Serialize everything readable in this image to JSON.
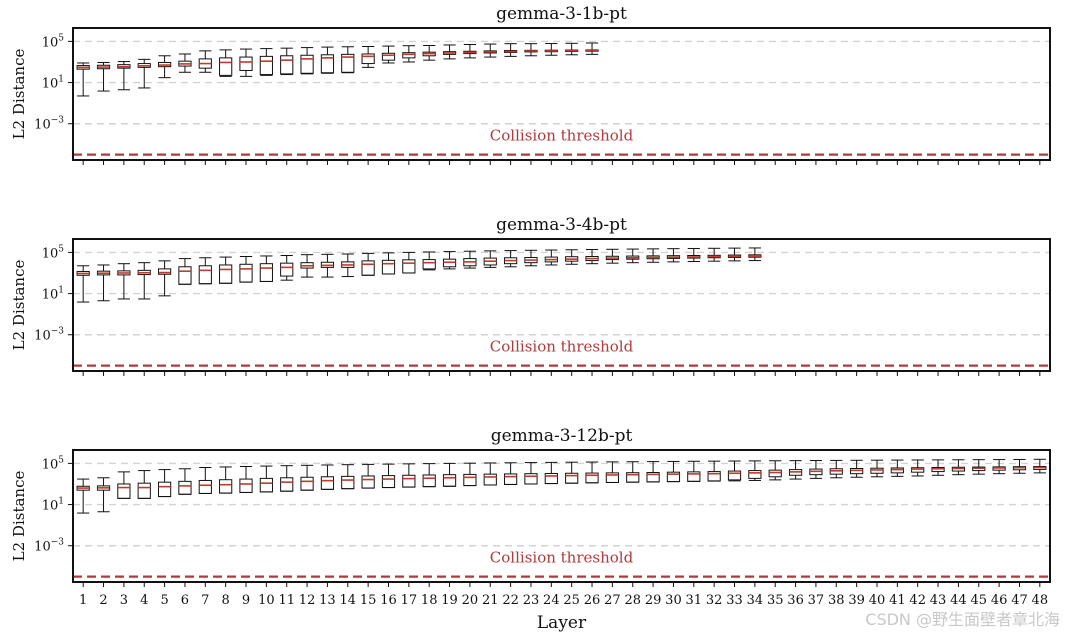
{
  "chart_data": [
    {
      "type": "boxplot",
      "title": "gemma-3-1b-pt",
      "ylabel": "L2 Distance",
      "xlabel": "Layer",
      "yscale": "log",
      "ylim": [
        3e-07,
        2000000.0
      ],
      "yticks": [
        0.001,
        10,
        100000.0
      ],
      "ytick_labels": [
        [
          "10",
          "−3"
        ],
        [
          "10",
          "1"
        ],
        [
          "10",
          "5"
        ]
      ],
      "grid": "horizontal dashed at major ticks",
      "threshold": {
        "value": 1e-06,
        "label": "Collision threshold",
        "color": "#b03a3a"
      },
      "n_layers": 26,
      "boxes": [
        {
          "layer": 1,
          "wlo": 0.5,
          "q1": 200,
          "med": 300,
          "q3": 450,
          "whi": 800
        },
        {
          "layer": 2,
          "wlo": 1.5,
          "q1": 220,
          "med": 320,
          "q3": 480,
          "whi": 900
        },
        {
          "layer": 3,
          "wlo": 2,
          "q1": 250,
          "med": 350,
          "q3": 550,
          "whi": 1100
        },
        {
          "layer": 4,
          "wlo": 3,
          "q1": 300,
          "med": 420,
          "q3": 700,
          "whi": 1800
        },
        {
          "layer": 5,
          "wlo": 30,
          "q1": 350,
          "med": 500,
          "q3": 900,
          "whi": 4000
        },
        {
          "layer": 6,
          "wlo": 100,
          "q1": 400,
          "med": 650,
          "q3": 1200,
          "whi": 6000
        },
        {
          "layer": 7,
          "wlo": 100,
          "q1": 250,
          "med": 700,
          "q3": 2000,
          "whi": 12000
        },
        {
          "layer": 8,
          "wlo": 40,
          "q1": 50,
          "med": 900,
          "q3": 2500,
          "whi": 15000
        },
        {
          "layer": 9,
          "wlo": 40,
          "q1": 150,
          "med": 1000,
          "q3": 3000,
          "whi": 18000
        },
        {
          "layer": 10,
          "wlo": 50,
          "q1": 60,
          "med": 1200,
          "q3": 3500,
          "whi": 20000
        },
        {
          "layer": 11,
          "wlo": 60,
          "q1": 70,
          "med": 1500,
          "q3": 4000,
          "whi": 22000
        },
        {
          "layer": 12,
          "wlo": 70,
          "q1": 80,
          "med": 2000,
          "q3": 4500,
          "whi": 25000
        },
        {
          "layer": 13,
          "wlo": 80,
          "q1": 90,
          "med": 2500,
          "q3": 5000,
          "whi": 28000
        },
        {
          "layer": 14,
          "wlo": 90,
          "q1": 100,
          "med": 3000,
          "q3": 5500,
          "whi": 30000
        },
        {
          "layer": 15,
          "wlo": 300,
          "q1": 700,
          "med": 3500,
          "q3": 6000,
          "whi": 32000
        },
        {
          "layer": 16,
          "wlo": 800,
          "q1": 1500,
          "med": 4500,
          "q3": 7000,
          "whi": 35000
        },
        {
          "layer": 17,
          "wlo": 1000,
          "q1": 2500,
          "med": 5500,
          "q3": 8000,
          "whi": 38000
        },
        {
          "layer": 18,
          "wlo": 1500,
          "q1": 4000,
          "med": 6500,
          "q3": 9000,
          "whi": 40000
        },
        {
          "layer": 19,
          "wlo": 2000,
          "q1": 5500,
          "med": 7500,
          "q3": 10000,
          "whi": 45000
        },
        {
          "layer": 20,
          "wlo": 2500,
          "q1": 6500,
          "med": 8500,
          "q3": 11000,
          "whi": 50000
        },
        {
          "layer": 21,
          "wlo": 3000,
          "q1": 7500,
          "med": 9500,
          "q3": 12000,
          "whi": 55000
        },
        {
          "layer": 22,
          "wlo": 3500,
          "q1": 8500,
          "med": 10500,
          "q3": 13000,
          "whi": 60000
        },
        {
          "layer": 23,
          "wlo": 4000,
          "q1": 9500,
          "med": 11500,
          "q3": 13500,
          "whi": 60000
        },
        {
          "layer": 24,
          "wlo": 4500,
          "q1": 10000,
          "med": 12000,
          "q3": 14000,
          "whi": 62000
        },
        {
          "layer": 25,
          "wlo": 5000,
          "q1": 10500,
          "med": 12500,
          "q3": 14500,
          "whi": 65000
        },
        {
          "layer": 26,
          "wlo": 5500,
          "q1": 11000,
          "med": 13000,
          "q3": 15000,
          "whi": 70000
        }
      ]
    },
    {
      "type": "boxplot",
      "title": "gemma-3-4b-pt",
      "ylabel": "L2 Distance",
      "xlabel": "Layer",
      "yscale": "log",
      "ylim": [
        3e-07,
        2000000.0
      ],
      "yticks": [
        0.001,
        10,
        100000.0
      ],
      "ytick_labels": [
        [
          "10",
          "−3"
        ],
        [
          "10",
          "1"
        ],
        [
          "10",
          "5"
        ]
      ],
      "grid": "horizontal dashed at major ticks",
      "threshold": {
        "value": 1e-06,
        "label": "Collision threshold",
        "color": "#b03a3a"
      },
      "n_layers": 34,
      "boxes": [
        {
          "layer": 1,
          "wlo": 1.5,
          "q1": 600,
          "med": 900,
          "q3": 1400,
          "whi": 5000
        },
        {
          "layer": 2,
          "wlo": 2,
          "q1": 650,
          "med": 950,
          "q3": 1500,
          "whi": 6000
        },
        {
          "layer": 3,
          "wlo": 3,
          "q1": 650,
          "med": 1000,
          "q3": 1600,
          "whi": 8000
        },
        {
          "layer": 4,
          "wlo": 3,
          "q1": 700,
          "med": 1050,
          "q3": 1800,
          "whi": 10000
        },
        {
          "layer": 5,
          "wlo": 6,
          "q1": 750,
          "med": 1100,
          "q3": 2500,
          "whi": 15000
        },
        {
          "layer": 6,
          "wlo": 80,
          "q1": 80,
          "med": 1500,
          "q3": 4000,
          "whi": 25000
        },
        {
          "layer": 7,
          "wlo": 90,
          "q1": 90,
          "med": 1800,
          "q3": 5000,
          "whi": 30000
        },
        {
          "layer": 8,
          "wlo": 100,
          "q1": 100,
          "med": 2200,
          "q3": 6000,
          "whi": 35000
        },
        {
          "layer": 9,
          "wlo": 130,
          "q1": 130,
          "med": 2500,
          "q3": 7000,
          "whi": 40000
        },
        {
          "layer": 10,
          "wlo": 150,
          "q1": 150,
          "med": 3000,
          "q3": 8000,
          "whi": 45000
        },
        {
          "layer": 11,
          "wlo": 200,
          "q1": 500,
          "med": 3500,
          "q3": 9000,
          "whi": 50000
        },
        {
          "layer": 12,
          "wlo": 400,
          "q1": 3000,
          "med": 5000,
          "q3": 10000,
          "whi": 60000
        },
        {
          "layer": 13,
          "wlo": 400,
          "q1": 3500,
          "med": 5500,
          "q3": 11000,
          "whi": 65000
        },
        {
          "layer": 14,
          "wlo": 450,
          "q1": 3500,
          "med": 6000,
          "q3": 12000,
          "whi": 70000
        },
        {
          "layer": 15,
          "wlo": 600,
          "q1": 600,
          "med": 7000,
          "q3": 15000,
          "whi": 80000
        },
        {
          "layer": 16,
          "wlo": 800,
          "q1": 800,
          "med": 8000,
          "q3": 17000,
          "whi": 90000
        },
        {
          "layer": 17,
          "wlo": 1000,
          "q1": 1000,
          "med": 9000,
          "q3": 19000,
          "whi": 100000
        },
        {
          "layer": 18,
          "wlo": 2000,
          "q1": 2500,
          "med": 10000,
          "q3": 20000,
          "whi": 110000
        },
        {
          "layer": 19,
          "wlo": 2500,
          "q1": 4000,
          "med": 11000,
          "q3": 22000,
          "whi": 120000
        },
        {
          "layer": 20,
          "wlo": 3000,
          "q1": 5000,
          "med": 12000,
          "q3": 25000,
          "whi": 130000
        },
        {
          "layer": 21,
          "wlo": 3500,
          "q1": 6000,
          "med": 14000,
          "q3": 28000,
          "whi": 140000
        },
        {
          "layer": 22,
          "wlo": 4000,
          "q1": 8000,
          "med": 16000,
          "q3": 30000,
          "whi": 150000
        },
        {
          "layer": 23,
          "wlo": 5000,
          "q1": 10000,
          "med": 18000,
          "q3": 32000,
          "whi": 160000
        },
        {
          "layer": 24,
          "wlo": 6000,
          "q1": 12000,
          "med": 20000,
          "q3": 35000,
          "whi": 170000
        },
        {
          "layer": 25,
          "wlo": 7000,
          "q1": 14000,
          "med": 22000,
          "q3": 38000,
          "whi": 180000
        },
        {
          "layer": 26,
          "wlo": 8000,
          "q1": 16000,
          "med": 25000,
          "q3": 40000,
          "whi": 190000
        },
        {
          "layer": 27,
          "wlo": 9000,
          "q1": 20000,
          "med": 28000,
          "q3": 42000,
          "whi": 200000
        },
        {
          "layer": 28,
          "wlo": 10000,
          "q1": 22000,
          "med": 30000,
          "q3": 44000,
          "whi": 210000
        },
        {
          "layer": 29,
          "wlo": 11000,
          "q1": 24000,
          "med": 32000,
          "q3": 46000,
          "whi": 220000
        },
        {
          "layer": 30,
          "wlo": 12000,
          "q1": 26000,
          "med": 34000,
          "q3": 48000,
          "whi": 230000
        },
        {
          "layer": 31,
          "wlo": 13000,
          "q1": 28000,
          "med": 36000,
          "q3": 50000,
          "whi": 240000
        },
        {
          "layer": 32,
          "wlo": 14000,
          "q1": 30000,
          "med": 38000,
          "q3": 52000,
          "whi": 250000
        },
        {
          "layer": 33,
          "wlo": 15000,
          "q1": 32000,
          "med": 40000,
          "q3": 55000,
          "whi": 260000
        },
        {
          "layer": 34,
          "wlo": 16000,
          "q1": 34000,
          "med": 42000,
          "q3": 58000,
          "whi": 270000
        }
      ]
    },
    {
      "type": "boxplot",
      "title": "gemma-3-12b-pt",
      "ylabel": "L2 Distance",
      "xlabel": "Layer",
      "yscale": "log",
      "ylim": [
        3e-07,
        2000000.0
      ],
      "yticks": [
        0.001,
        10,
        100000.0
      ],
      "ytick_labels": [
        [
          "10",
          "−3"
        ],
        [
          "10",
          "1"
        ],
        [
          "10",
          "5"
        ]
      ],
      "grid": "horizontal dashed at major ticks",
      "threshold": {
        "value": 1e-06,
        "label": "Collision threshold",
        "color": "#b03a3a"
      },
      "n_layers": 48,
      "boxes": [
        {
          "layer": 1,
          "wlo": 1.5,
          "q1": 250,
          "med": 400,
          "q3": 600,
          "whi": 3000
        },
        {
          "layer": 2,
          "wlo": 2,
          "q1": 250,
          "med": 420,
          "q3": 650,
          "whi": 4000
        },
        {
          "layer": 3,
          "wlo": 40,
          "q1": 40,
          "med": 450,
          "q3": 1000,
          "whi": 15000
        },
        {
          "layer": 4,
          "wlo": 40,
          "q1": 40,
          "med": 450,
          "q3": 1200,
          "whi": 20000
        },
        {
          "layer": 5,
          "wlo": 60,
          "q1": 60,
          "med": 550,
          "q3": 1500,
          "whi": 25000
        },
        {
          "layer": 6,
          "wlo": 100,
          "q1": 100,
          "med": 650,
          "q3": 1800,
          "whi": 30000
        },
        {
          "layer": 7,
          "wlo": 120,
          "q1": 120,
          "med": 750,
          "q3": 2200,
          "whi": 40000
        },
        {
          "layer": 8,
          "wlo": 130,
          "q1": 130,
          "med": 850,
          "q3": 2600,
          "whi": 45000
        },
        {
          "layer": 9,
          "wlo": 150,
          "q1": 150,
          "med": 1000,
          "q3": 3000,
          "whi": 50000
        },
        {
          "layer": 10,
          "wlo": 170,
          "q1": 170,
          "med": 1200,
          "q3": 3500,
          "whi": 55000
        },
        {
          "layer": 11,
          "wlo": 200,
          "q1": 200,
          "med": 1500,
          "q3": 4000,
          "whi": 60000
        },
        {
          "layer": 12,
          "wlo": 250,
          "q1": 250,
          "med": 1800,
          "q3": 4500,
          "whi": 65000
        },
        {
          "layer": 13,
          "wlo": 300,
          "q1": 300,
          "med": 2100,
          "q3": 5000,
          "whi": 70000
        },
        {
          "layer": 14,
          "wlo": 350,
          "q1": 350,
          "med": 2400,
          "q3": 5500,
          "whi": 75000
        },
        {
          "layer": 15,
          "wlo": 400,
          "q1": 400,
          "med": 2700,
          "q3": 6000,
          "whi": 80000
        },
        {
          "layer": 16,
          "wlo": 450,
          "q1": 450,
          "med": 3000,
          "q3": 6500,
          "whi": 85000
        },
        {
          "layer": 17,
          "wlo": 500,
          "q1": 500,
          "med": 3300,
          "q3": 7000,
          "whi": 90000
        },
        {
          "layer": 18,
          "wlo": 550,
          "q1": 550,
          "med": 3600,
          "q3": 7500,
          "whi": 95000
        },
        {
          "layer": 19,
          "wlo": 600,
          "q1": 600,
          "med": 4000,
          "q3": 8000,
          "whi": 100000
        },
        {
          "layer": 20,
          "wlo": 700,
          "q1": 700,
          "med": 4400,
          "q3": 8500,
          "whi": 105000
        },
        {
          "layer": 21,
          "wlo": 800,
          "q1": 800,
          "med": 4800,
          "q3": 9000,
          "whi": 110000
        },
        {
          "layer": 22,
          "wlo": 900,
          "q1": 900,
          "med": 5200,
          "q3": 9500,
          "whi": 115000
        },
        {
          "layer": 23,
          "wlo": 1000,
          "q1": 1000,
          "med": 5600,
          "q3": 10000,
          "whi": 120000
        },
        {
          "layer": 24,
          "wlo": 1100,
          "q1": 1100,
          "med": 6000,
          "q3": 10500,
          "whi": 125000
        },
        {
          "layer": 25,
          "wlo": 1200,
          "q1": 1200,
          "med": 6500,
          "q3": 11000,
          "whi": 130000
        },
        {
          "layer": 26,
          "wlo": 1300,
          "q1": 1300,
          "med": 7000,
          "q3": 11500,
          "whi": 135000
        },
        {
          "layer": 27,
          "wlo": 1400,
          "q1": 1400,
          "med": 7500,
          "q3": 12000,
          "whi": 140000
        },
        {
          "layer": 28,
          "wlo": 1500,
          "q1": 1500,
          "med": 8000,
          "q3": 12500,
          "whi": 145000
        },
        {
          "layer": 29,
          "wlo": 1600,
          "q1": 1600,
          "med": 8500,
          "q3": 13000,
          "whi": 150000
        },
        {
          "layer": 30,
          "wlo": 1700,
          "q1": 1700,
          "med": 9000,
          "q3": 14000,
          "whi": 155000
        },
        {
          "layer": 31,
          "wlo": 1800,
          "q1": 1800,
          "med": 9500,
          "q3": 15000,
          "whi": 160000
        },
        {
          "layer": 32,
          "wlo": 1900,
          "q1": 2000,
          "med": 10000,
          "q3": 16000,
          "whi": 165000
        },
        {
          "layer": 33,
          "wlo": 2000,
          "q1": 2500,
          "med": 11000,
          "q3": 18000,
          "whi": 170000
        },
        {
          "layer": 34,
          "wlo": 2200,
          "q1": 3500,
          "med": 12000,
          "q3": 20000,
          "whi": 175000
        },
        {
          "layer": 35,
          "wlo": 2500,
          "q1": 5000,
          "med": 13000,
          "q3": 22000,
          "whi": 180000
        },
        {
          "layer": 36,
          "wlo": 3000,
          "q1": 7000,
          "med": 15000,
          "q3": 25000,
          "whi": 185000
        },
        {
          "layer": 37,
          "wlo": 3500,
          "q1": 8000,
          "med": 17000,
          "q3": 28000,
          "whi": 190000
        },
        {
          "layer": 38,
          "wlo": 4000,
          "q1": 9000,
          "med": 19000,
          "q3": 30000,
          "whi": 195000
        },
        {
          "layer": 39,
          "wlo": 4500,
          "q1": 10000,
          "med": 21000,
          "q3": 32000,
          "whi": 200000
        },
        {
          "layer": 40,
          "wlo": 5000,
          "q1": 11000,
          "med": 23000,
          "q3": 34000,
          "whi": 205000
        },
        {
          "layer": 41,
          "wlo": 5500,
          "q1": 12000,
          "med": 25000,
          "q3": 36000,
          "whi": 210000
        },
        {
          "layer": 42,
          "wlo": 6000,
          "q1": 14000,
          "med": 28000,
          "q3": 38000,
          "whi": 215000
        },
        {
          "layer": 43,
          "wlo": 7000,
          "q1": 16000,
          "med": 30000,
          "q3": 40000,
          "whi": 220000
        },
        {
          "layer": 44,
          "wlo": 8000,
          "q1": 18000,
          "med": 32000,
          "q3": 42000,
          "whi": 225000
        },
        {
          "layer": 45,
          "wlo": 9000,
          "q1": 20000,
          "med": 34000,
          "q3": 44000,
          "whi": 230000
        },
        {
          "layer": 46,
          "wlo": 10000,
          "q1": 22000,
          "med": 36000,
          "q3": 46000,
          "whi": 235000
        },
        {
          "layer": 47,
          "wlo": 11000,
          "q1": 24000,
          "med": 38000,
          "q3": 48000,
          "whi": 240000
        },
        {
          "layer": 48,
          "wlo": 12000,
          "q1": 26000,
          "med": 40000,
          "q3": 50000,
          "whi": 250000
        }
      ]
    }
  ],
  "x_tick_labels": [
    "1",
    "2",
    "3",
    "4",
    "5",
    "6",
    "7",
    "8",
    "9",
    "10",
    "11",
    "12",
    "13",
    "14",
    "15",
    "16",
    "17",
    "18",
    "19",
    "20",
    "21",
    "22",
    "23",
    "24",
    "25",
    "26",
    "27",
    "28",
    "29",
    "30",
    "31",
    "32",
    "33",
    "34",
    "35",
    "36",
    "37",
    "38",
    "39",
    "40",
    "41",
    "42",
    "43",
    "44",
    "45",
    "46",
    "47",
    "48"
  ],
  "watermark": "CSDN @野生面壁者章北海"
}
